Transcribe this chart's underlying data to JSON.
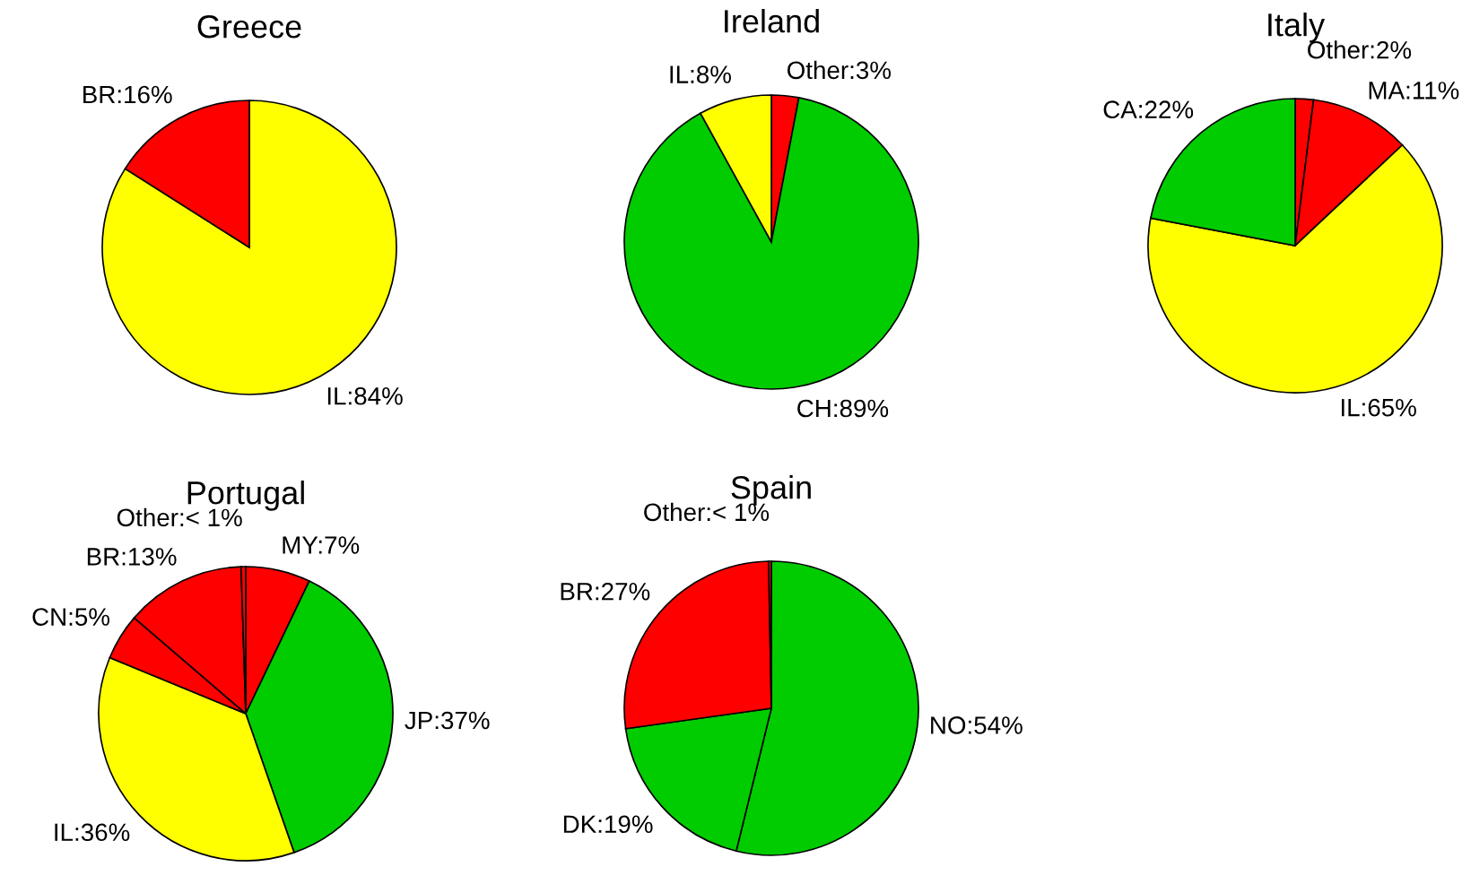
{
  "chart_data": [
    {
      "type": "pie",
      "title": "Greece",
      "categories": [
        "IL",
        "BR"
      ],
      "values": [
        84,
        16
      ],
      "colors": [
        "#ffff00",
        "#ff0000"
      ],
      "value_labels": [
        "84%",
        "16%"
      ]
    },
    {
      "type": "pie",
      "title": "Ireland",
      "categories": [
        "Other",
        "CH",
        "IL"
      ],
      "values": [
        3,
        89,
        8
      ],
      "colors": [
        "#ff0000",
        "#00cc00",
        "#ffff00"
      ],
      "value_labels": [
        "3%",
        "89%",
        "8%"
      ]
    },
    {
      "type": "pie",
      "title": "Italy",
      "categories": [
        "Other",
        "MA",
        "IL",
        "CA"
      ],
      "values": [
        2,
        11,
        65,
        22
      ],
      "colors": [
        "#ff0000",
        "#ff0000",
        "#ffff00",
        "#00cc00"
      ],
      "value_labels": [
        "2%",
        "11%",
        "65%",
        "22%"
      ]
    },
    {
      "type": "pie",
      "title": "Portugal",
      "categories": [
        "MY",
        "JP",
        "IL",
        "CN",
        "BR",
        "Other"
      ],
      "values": [
        7,
        37,
        36,
        5,
        13,
        0.5
      ],
      "colors": [
        "#ff0000",
        "#00cc00",
        "#ffff00",
        "#ff0000",
        "#ff0000",
        "#ff0000"
      ],
      "value_labels": [
        "7%",
        "37%",
        "36%",
        "5%",
        "13%",
        "< 1%"
      ]
    },
    {
      "type": "pie",
      "title": "Spain",
      "categories": [
        "NO",
        "DK",
        "BR",
        "Other"
      ],
      "values": [
        54,
        19,
        27,
        0.3
      ],
      "colors": [
        "#00cc00",
        "#00cc00",
        "#ff0000",
        "#ff0000"
      ],
      "value_labels": [
        "54%",
        "19%",
        "27%",
        "< 1%"
      ]
    }
  ]
}
